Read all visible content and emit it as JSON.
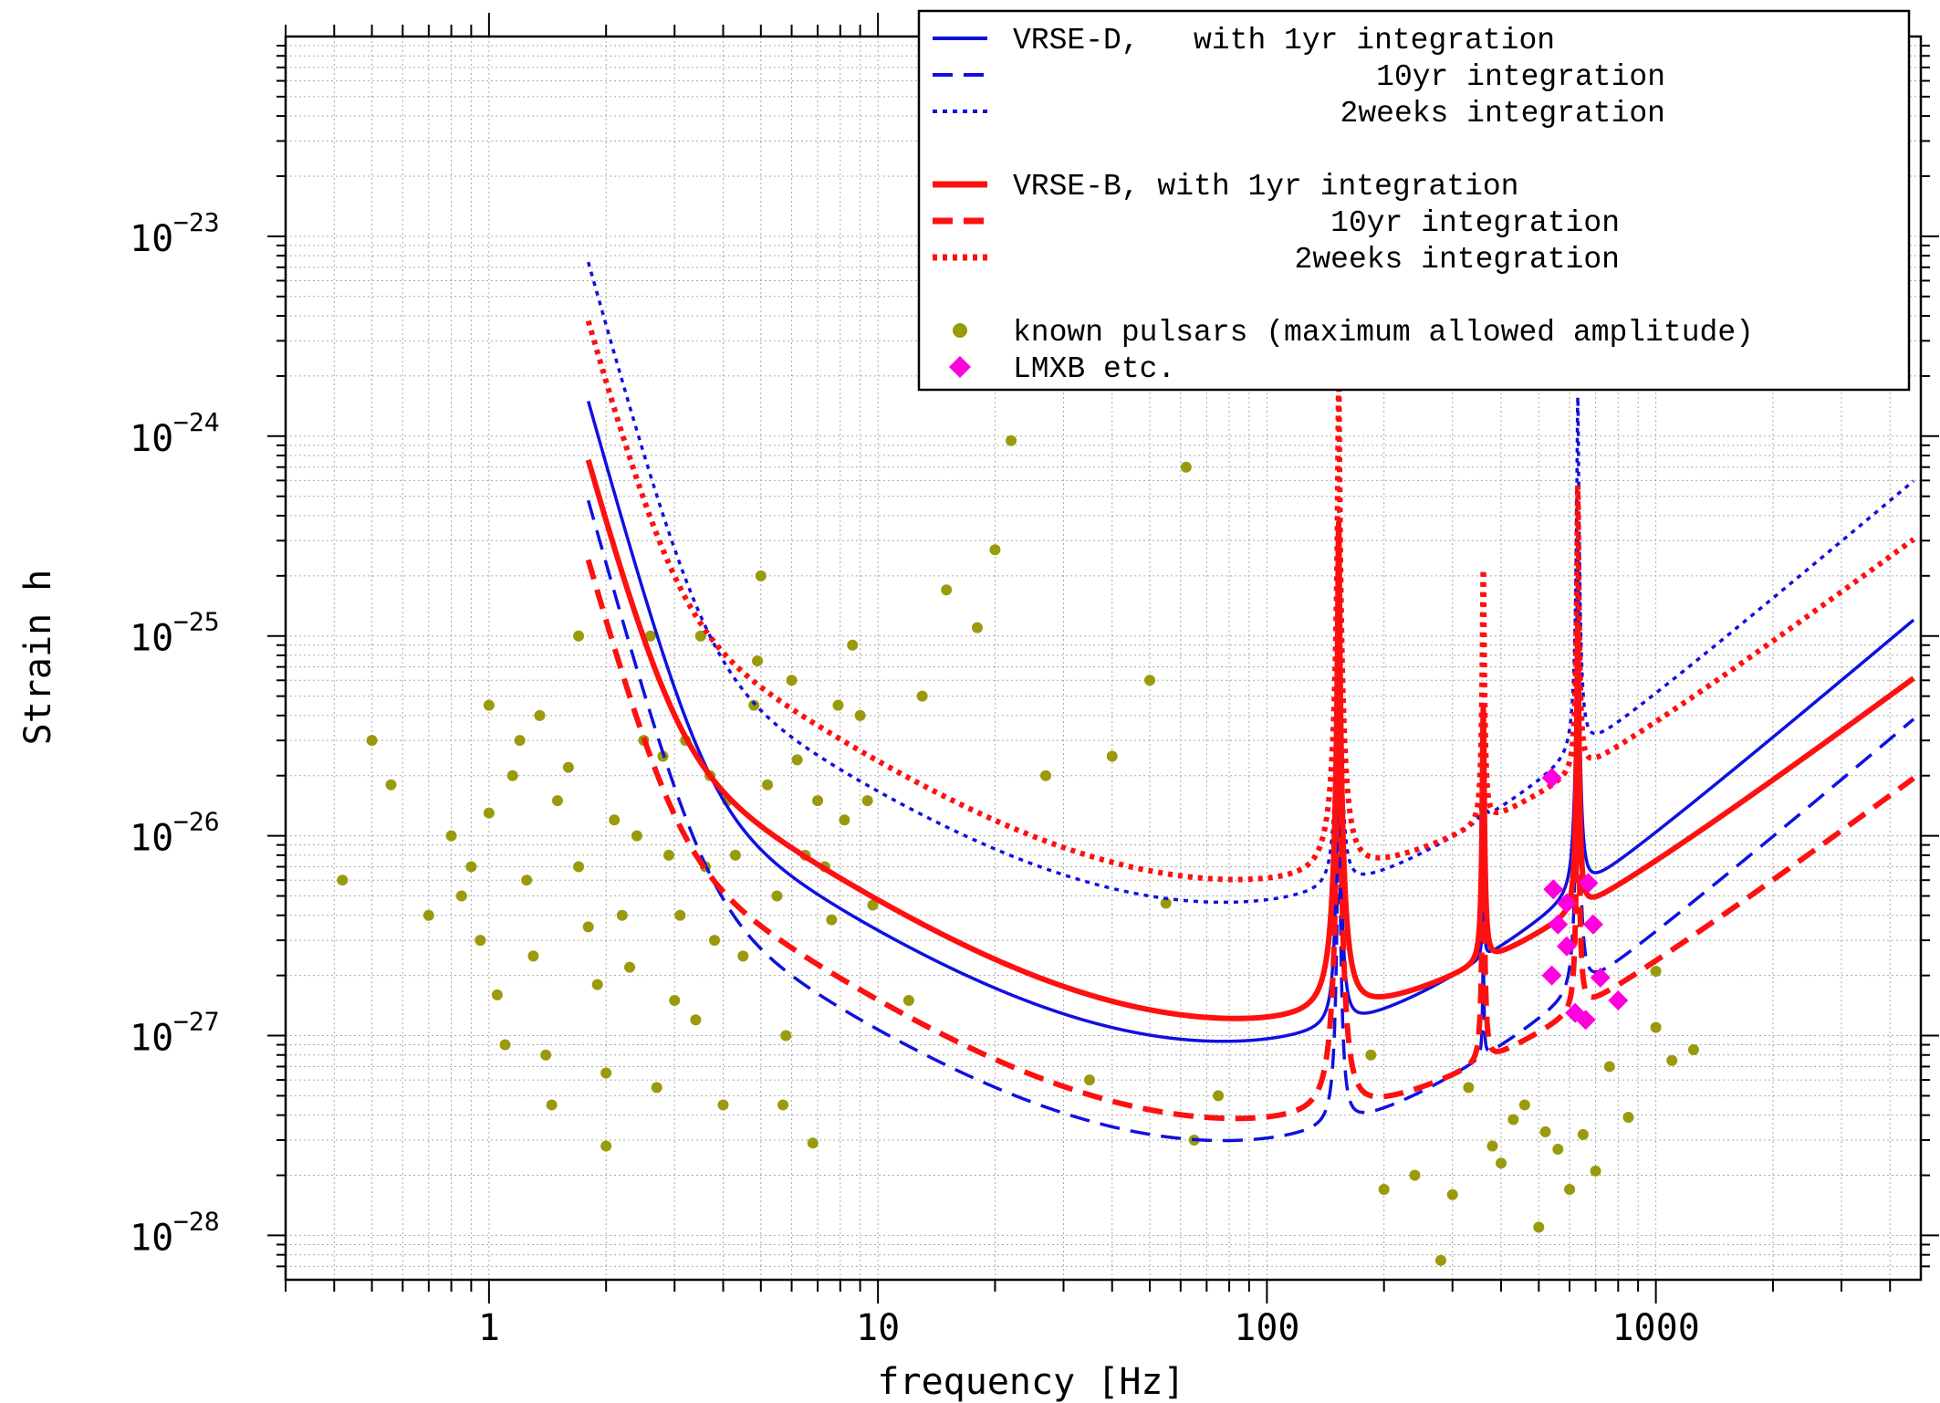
{
  "chart_data": {
    "type": "line",
    "xlabel": "frequency [Hz]",
    "ylabel": "Strain h",
    "x_scale": "log",
    "y_scale": "log",
    "xlim": [
      0.3,
      4800
    ],
    "ylim": [
      6e-29,
      1e-22
    ],
    "x_ticks": [
      {
        "value": 1,
        "label": "1"
      },
      {
        "value": 10,
        "label": "10"
      },
      {
        "value": 100,
        "label": "100"
      },
      {
        "value": 1000,
        "label": "1000"
      }
    ],
    "y_ticks": [
      {
        "value": 1e-28,
        "base": "10",
        "exp": "−28"
      },
      {
        "value": 1e-27,
        "base": "10",
        "exp": "−27"
      },
      {
        "value": 1e-26,
        "base": "10",
        "exp": "−26"
      },
      {
        "value": 1e-25,
        "base": "10",
        "exp": "−25"
      },
      {
        "value": 1e-24,
        "base": "10",
        "exp": "−24"
      },
      {
        "value": 1e-23,
        "base": "10",
        "exp": "−23"
      }
    ],
    "grid": true,
    "legend_position": "top-right",
    "series": [
      {
        "name": "VRSE-D,   with 1yr integration",
        "color": "#1010e0",
        "style": "solid",
        "curve": {
          "k": 5.9e-28,
          "wall_f": 5.5,
          "wall_exp": 7,
          "min_f": 95,
          "hi_exp": 0.82,
          "peaks": [
            [
              153,
              80
            ],
            [
              360,
              2
            ],
            [
              630,
              60
            ]
          ]
        }
      },
      {
        "name": "10yr integration",
        "color": "#1010e0",
        "style": "dashed",
        "curve": {
          "k": 1.88e-28,
          "wall_f": 5.5,
          "wall_exp": 7,
          "min_f": 95,
          "hi_exp": 0.82,
          "peaks": [
            [
              153,
              80
            ],
            [
              360,
              2
            ],
            [
              630,
              60
            ]
          ]
        }
      },
      {
        "name": "2weeks integration",
        "color": "#1010e0",
        "style": "dotted",
        "curve": {
          "k": 2.93e-27,
          "wall_f": 5.5,
          "wall_exp": 7,
          "min_f": 95,
          "hi_exp": 0.82,
          "peaks": [
            [
              153,
              80
            ],
            [
              360,
              2
            ],
            [
              630,
              60
            ]
          ]
        }
      },
      {
        "name": "VRSE-B, with 1yr integration",
        "color": "#ff1010",
        "style": "solid",
        "curve": {
          "k": 7.5e-28,
          "wall_f": 4.8,
          "wall_exp": 7,
          "min_f": 105,
          "hi_exp": 0.72,
          "peaks": [
            [
              153,
              280
            ],
            [
              360,
              18
            ],
            [
              630,
              26
            ]
          ]
        }
      },
      {
        "name": "10yr integration",
        "color": "#ff1010",
        "style": "dashed",
        "curve": {
          "k": 2.37e-28,
          "wall_f": 4.8,
          "wall_exp": 7,
          "min_f": 105,
          "hi_exp": 0.72,
          "peaks": [
            [
              153,
              280
            ],
            [
              360,
              18
            ],
            [
              630,
              26
            ]
          ]
        }
      },
      {
        "name": "2weeks integration",
        "color": "#ff1010",
        "style": "dotted",
        "curve": {
          "k": 3.72e-27,
          "wall_f": 4.8,
          "wall_exp": 7,
          "min_f": 105,
          "hi_exp": 0.72,
          "peaks": [
            [
              153,
              280
            ],
            [
              360,
              18
            ],
            [
              630,
              26
            ]
          ]
        }
      }
    ],
    "scatter_series": [
      {
        "name": "known pulsars (maximum allowed amplitude)",
        "color": "#9a9a0c",
        "marker": "circle",
        "points": [
          [
            0.42,
            6e-27
          ],
          [
            0.5,
            3e-26
          ],
          [
            0.56,
            1.8e-26
          ],
          [
            0.7,
            4e-27
          ],
          [
            0.8,
            1e-26
          ],
          [
            0.85,
            5e-27
          ],
          [
            0.9,
            7e-27
          ],
          [
            0.95,
            3e-27
          ],
          [
            1.0,
            4.5e-26
          ],
          [
            1.0,
            1.3e-26
          ],
          [
            1.05,
            1.6e-27
          ],
          [
            1.1,
            9e-28
          ],
          [
            1.15,
            2e-26
          ],
          [
            1.2,
            3e-26
          ],
          [
            1.25,
            6e-27
          ],
          [
            1.3,
            2.5e-27
          ],
          [
            1.35,
            4e-26
          ],
          [
            1.4,
            8e-28
          ],
          [
            1.45,
            4.5e-28
          ],
          [
            1.5,
            1.5e-26
          ],
          [
            1.6,
            2.2e-26
          ],
          [
            1.7,
            1e-25
          ],
          [
            1.7,
            7e-27
          ],
          [
            1.8,
            3.5e-27
          ],
          [
            1.9,
            1.8e-27
          ],
          [
            2.0,
            6.5e-28
          ],
          [
            2.0,
            2.8e-28
          ],
          [
            2.1,
            1.2e-26
          ],
          [
            2.2,
            4e-27
          ],
          [
            2.3,
            2.2e-27
          ],
          [
            2.4,
            1e-26
          ],
          [
            2.5,
            3e-26
          ],
          [
            2.6,
            1e-25
          ],
          [
            2.7,
            5.5e-28
          ],
          [
            2.8,
            2.5e-26
          ],
          [
            2.9,
            8e-27
          ],
          [
            3.0,
            1.5e-27
          ],
          [
            3.1,
            4e-27
          ],
          [
            3.2,
            3e-26
          ],
          [
            3.4,
            1.2e-27
          ],
          [
            3.5,
            1e-25
          ],
          [
            3.6,
            7e-27
          ],
          [
            3.7,
            2e-26
          ],
          [
            3.8,
            3e-27
          ],
          [
            4.0,
            4.5e-28
          ],
          [
            4.1,
            1.5e-26
          ],
          [
            4.3,
            8e-27
          ],
          [
            4.5,
            2.5e-27
          ],
          [
            4.8,
            4.5e-26
          ],
          [
            4.9,
            7.5e-26
          ],
          [
            5.0,
            2e-25
          ],
          [
            5.2,
            1.8e-26
          ],
          [
            5.5,
            5e-27
          ],
          [
            5.7,
            4.5e-28
          ],
          [
            5.8,
            1e-27
          ],
          [
            6.0,
            6e-26
          ],
          [
            6.2,
            2.4e-26
          ],
          [
            6.5,
            8e-27
          ],
          [
            6.8,
            2.9e-28
          ],
          [
            7.0,
            1.5e-26
          ],
          [
            7.3,
            7e-27
          ],
          [
            7.6,
            3.8e-27
          ],
          [
            7.9,
            4.5e-26
          ],
          [
            8.2,
            1.2e-26
          ],
          [
            8.6,
            9e-26
          ],
          [
            9.0,
            4e-26
          ],
          [
            9.4,
            1.5e-26
          ],
          [
            9.7,
            4.5e-27
          ],
          [
            12,
            1.5e-27
          ],
          [
            13,
            5e-26
          ],
          [
            15,
            1.7e-25
          ],
          [
            18,
            1.1e-25
          ],
          [
            20,
            2.7e-25
          ],
          [
            22,
            9.5e-25
          ],
          [
            27,
            2e-26
          ],
          [
            35,
            6e-28
          ],
          [
            40,
            2.5e-26
          ],
          [
            50,
            6e-26
          ],
          [
            55,
            4.6e-27
          ],
          [
            62,
            7e-25
          ],
          [
            65,
            3e-28
          ],
          [
            75,
            5e-28
          ],
          [
            185,
            8e-28
          ],
          [
            200,
            1.7e-28
          ],
          [
            240,
            2e-28
          ],
          [
            280,
            7.5e-29
          ],
          [
            300,
            1.6e-28
          ],
          [
            330,
            5.5e-28
          ],
          [
            380,
            2.8e-28
          ],
          [
            400,
            2.3e-28
          ],
          [
            430,
            3.8e-28
          ],
          [
            460,
            4.5e-28
          ],
          [
            500,
            1.1e-28
          ],
          [
            520,
            3.3e-28
          ],
          [
            560,
            2.7e-28
          ],
          [
            600,
            1.7e-28
          ],
          [
            650,
            3.2e-28
          ],
          [
            700,
            2.1e-28
          ],
          [
            760,
            7e-28
          ],
          [
            850,
            3.9e-28
          ],
          [
            1000,
            2.1e-27
          ],
          [
            1000,
            1.1e-27
          ],
          [
            1100,
            7.5e-28
          ],
          [
            1250,
            8.5e-28
          ]
        ]
      },
      {
        "name": "LMXB etc.",
        "color": "#ff00dd",
        "marker": "diamond",
        "points": [
          [
            540,
            1.95e-26
          ],
          [
            545,
            5.4e-27
          ],
          [
            560,
            3.6e-27
          ],
          [
            590,
            4.6e-27
          ],
          [
            590,
            2.8e-27
          ],
          [
            620,
            1.3e-27
          ],
          [
            670,
            5.8e-27
          ],
          [
            690,
            3.6e-27
          ],
          [
            720,
            1.95e-27
          ],
          [
            800,
            1.5e-27
          ],
          [
            540,
            2e-27
          ],
          [
            660,
            1.2e-27
          ]
        ]
      }
    ]
  }
}
